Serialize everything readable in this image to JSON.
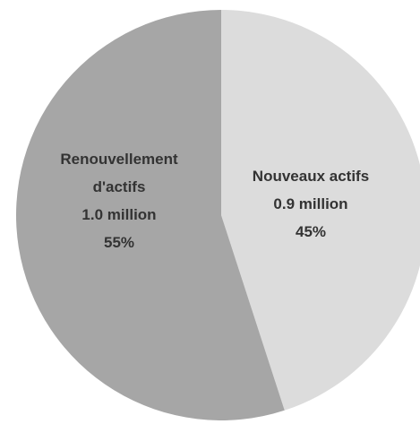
{
  "chart_data": {
    "type": "pie",
    "categories": [
      "Nouveaux actifs",
      "Renouvellement d'actifs"
    ],
    "values": [
      45,
      55
    ],
    "value_labels": [
      "45%",
      "55%"
    ],
    "amount_labels": [
      "0.9 million",
      "1.0 million"
    ],
    "colors": [
      "#dcdcdc",
      "#a6a6a6"
    ]
  }
}
